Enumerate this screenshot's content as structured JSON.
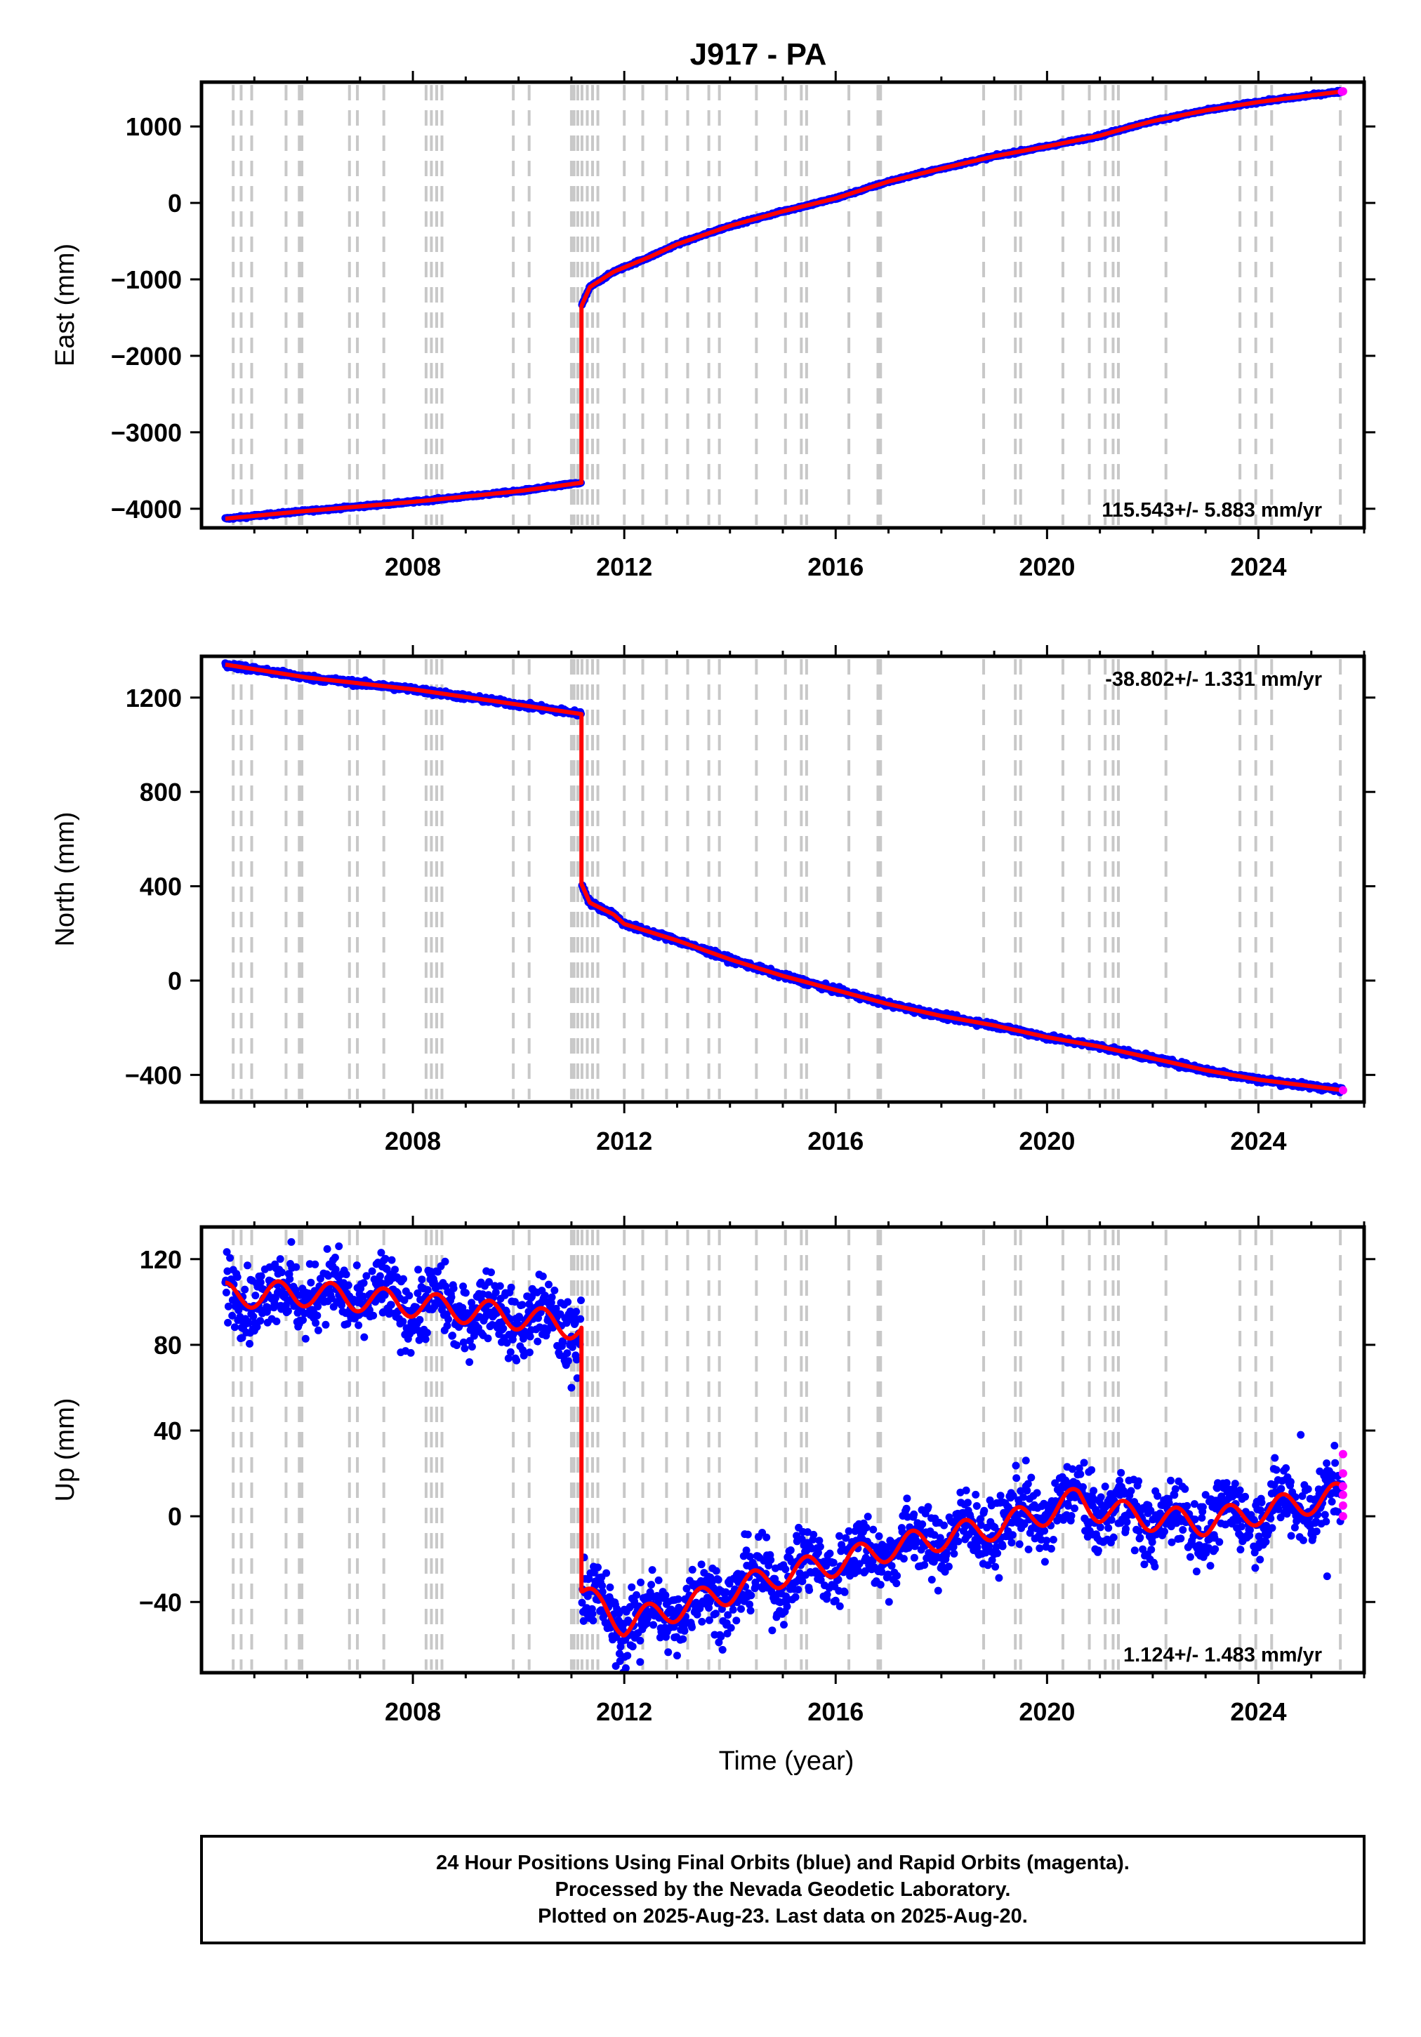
{
  "title": "J917 - PA",
  "footer": {
    "line1": "24 Hour Positions Using Final Orbits (blue) and Rapid Orbits (magenta).",
    "line2": "Processed by the Nevada Geodetic Laboratory.",
    "line3": "Plotted on 2025-Aug-23. Last data on 2025-Aug-20."
  },
  "colors": {
    "final": "#0000ff",
    "rapid": "#ff00ff",
    "model": "#ff0000",
    "equipment_change": "#c8c8c8"
  },
  "chart_data": [
    {
      "type": "scatter",
      "ylabel": "East (mm)",
      "rate": "115.543+/- 5.883 mm/yr",
      "rate_position": "bottom-right",
      "xlim": [
        2004.0,
        2026.0
      ],
      "ylim": [
        -4250,
        1580
      ],
      "xticks": [
        2008,
        2012,
        2016,
        2020,
        2024
      ],
      "yticks": [
        -4000,
        -3000,
        -2000,
        -1000,
        0,
        1000
      ],
      "series": [
        {
          "kind": "model",
          "points": [
            [
              2004.45,
              -4130
            ],
            [
              2005.8,
              -4040
            ],
            [
              2008,
              -3910
            ],
            [
              2010,
              -3770
            ],
            [
              2011.19,
              -3660
            ],
            [
              2011.19,
              -1350
            ],
            [
              2011.35,
              -1100
            ],
            [
              2011.8,
              -900
            ],
            [
              2012.5,
              -700
            ],
            [
              2013,
              -540
            ],
            [
              2014,
              -300
            ],
            [
              2015,
              -110
            ],
            [
              2016,
              60
            ],
            [
              2017,
              280
            ],
            [
              2018,
              450
            ],
            [
              2019,
              610
            ],
            [
              2020,
              740
            ],
            [
              2021,
              880
            ],
            [
              2021.5,
              980
            ],
            [
              2022,
              1070
            ],
            [
              2023,
              1210
            ],
            [
              2024,
              1320
            ],
            [
              2025.6,
              1460
            ]
          ]
        },
        {
          "kind": "final",
          "noise": 8
        },
        {
          "kind": "rapid",
          "points": [
            [
              2025.58,
              1455
            ],
            [
              2025.6,
              1460
            ]
          ]
        }
      ]
    },
    {
      "type": "scatter",
      "ylabel": "North (mm)",
      "rate": "-38.802+/- 1.331 mm/yr",
      "rate_position": "top-right",
      "xlim": [
        2004.0,
        2026.0
      ],
      "ylim": [
        -515,
        1375
      ],
      "xticks": [
        2008,
        2012,
        2016,
        2020,
        2024
      ],
      "yticks": [
        -400,
        0,
        400,
        800,
        1200
      ],
      "series": [
        {
          "kind": "model",
          "points": [
            [
              2004.45,
              1340
            ],
            [
              2006,
              1285
            ],
            [
              2008,
              1235
            ],
            [
              2010,
              1170
            ],
            [
              2011.19,
              1130
            ],
            [
              2011.19,
              410
            ],
            [
              2011.35,
              330
            ],
            [
              2011.8,
              280
            ],
            [
              2012,
              240
            ],
            [
              2013,
              170
            ],
            [
              2014,
              90
            ],
            [
              2015,
              20
            ],
            [
              2016,
              -40
            ],
            [
              2017,
              -100
            ],
            [
              2018,
              -150
            ],
            [
              2019,
              -190
            ],
            [
              2020,
              -240
            ],
            [
              2021,
              -280
            ],
            [
              2022,
              -330
            ],
            [
              2023,
              -380
            ],
            [
              2024,
              -420
            ],
            [
              2025.6,
              -465
            ]
          ]
        },
        {
          "kind": "final",
          "noise": 6
        },
        {
          "kind": "rapid",
          "points": [
            [
              2025.6,
              -465
            ]
          ]
        }
      ]
    },
    {
      "type": "scatter",
      "ylabel": "Up (mm)",
      "xlabel": "Time (year)",
      "rate": "1.124+/- 1.483 mm/yr",
      "rate_position": "bottom-right",
      "xlim": [
        2004.0,
        2026.0
      ],
      "ylim": [
        -73,
        135
      ],
      "xticks": [
        2008,
        2012,
        2016,
        2020,
        2024
      ],
      "yticks": [
        -40,
        0,
        40,
        80,
        120
      ],
      "series": [
        {
          "kind": "model",
          "seasonal_amplitude": 6,
          "points": [
            [
              2004.45,
              103
            ],
            [
              2006,
              104
            ],
            [
              2008,
              99
            ],
            [
              2010,
              93
            ],
            [
              2011.19,
              88
            ],
            [
              2011.19,
              -35
            ],
            [
              2011.5,
              -42
            ],
            [
              2012,
              -50
            ],
            [
              2013,
              -43
            ],
            [
              2014,
              -35
            ],
            [
              2015,
              -27
            ],
            [
              2016,
              -22
            ],
            [
              2017,
              -15
            ],
            [
              2018,
              -10
            ],
            [
              2019,
              -5
            ],
            [
              2020,
              2
            ],
            [
              2020.6,
              8
            ],
            [
              2021,
              3
            ],
            [
              2022,
              -1
            ],
            [
              2023,
              -3
            ],
            [
              2024,
              2
            ],
            [
              2025.6,
              10
            ]
          ]
        },
        {
          "kind": "final",
          "noise": 8
        },
        {
          "kind": "rapid",
          "points": [
            [
              2025.6,
              29
            ],
            [
              2025.6,
              20
            ],
            [
              2025.6,
              14
            ],
            [
              2025.6,
              10
            ],
            [
              2025.6,
              5
            ],
            [
              2025.6,
              0
            ]
          ]
        }
      ]
    }
  ],
  "equipment_changes": [
    2004.6,
    2004.75,
    2004.95,
    2005.6,
    2005.85,
    2005.9,
    2006.8,
    2006.95,
    2007.45,
    2008.25,
    2008.35,
    2008.45,
    2008.55,
    2009.9,
    2010.2,
    2011.0,
    2011.05,
    2011.12,
    2011.2,
    2011.3,
    2011.4,
    2011.5,
    2012.0,
    2012.35,
    2012.8,
    2013.2,
    2013.6,
    2013.8,
    2014.5,
    2015.05,
    2015.35,
    2015.45,
    2016.25,
    2016.8,
    2016.85,
    2018.8,
    2019.4,
    2019.5,
    2020.3,
    2020.8,
    2021.1,
    2021.25,
    2021.35,
    2022.25,
    2023.65,
    2023.95,
    2024.25,
    2025.55
  ]
}
